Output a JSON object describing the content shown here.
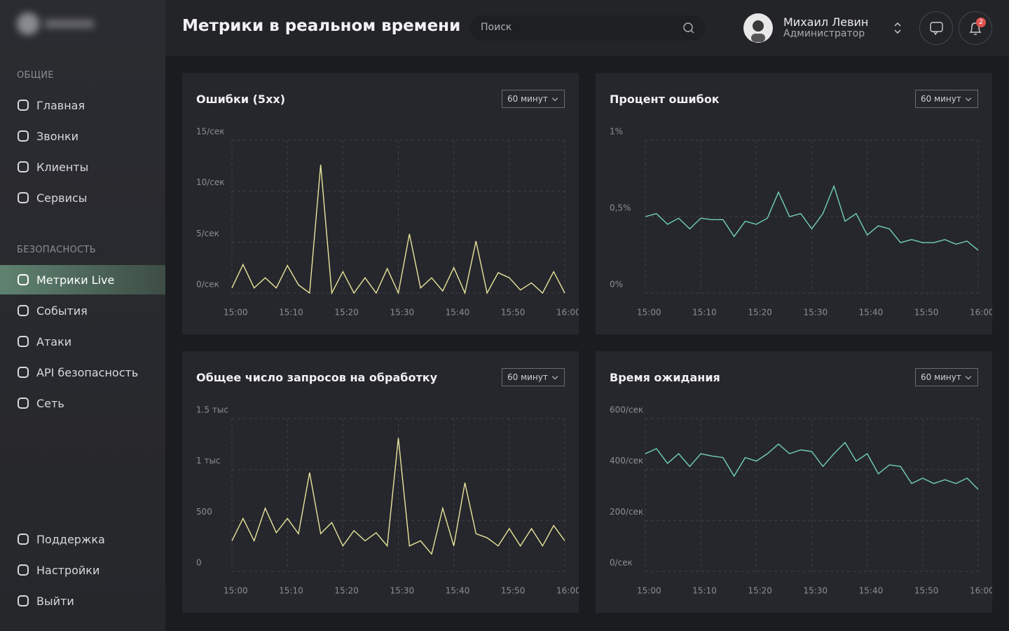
{
  "sidebar": {
    "groups": [
      {
        "title": "ОБЩИЕ",
        "items": [
          "Главная",
          "Звонки",
          "Клиенты",
          "Сервисы"
        ]
      },
      {
        "title": "БЕЗОПАСНОСТЬ",
        "items": [
          "Метрики Live",
          "События",
          "Атаки",
          "API безопасность",
          "Сеть"
        ]
      }
    ],
    "bottom": [
      "Поддержка",
      "Настройки",
      "Выйти"
    ]
  },
  "header": {
    "title": "Метрики в реальном времени",
    "search": "Поиск",
    "user": "Михаил Левин",
    "role": "Администратор",
    "notifications": 2
  },
  "chart_data": [
    {
      "type": "line",
      "title": "Ошибки (5xx)",
      "period": "60 минут",
      "color": "#e9e49c",
      "categories": [
        "15:00",
        null,
        null,
        null,
        null,
        "15:10",
        null,
        null,
        null,
        null,
        "15:20",
        null,
        null,
        null,
        null,
        "15:30",
        null,
        null,
        null,
        null,
        "15:40",
        null,
        null,
        null,
        null,
        "15:50",
        null,
        null,
        null,
        null,
        "16:00"
      ],
      "values": [
        0.5,
        2.8,
        0.5,
        1.5,
        0.5,
        2.7,
        0.8,
        0,
        12.6,
        0,
        2.1,
        0,
        1.5,
        0,
        2.4,
        0,
        5.8,
        0.5,
        1.5,
        0.2,
        2.5,
        0,
        5.1,
        0,
        2.0,
        1.5,
        0.3,
        1.0,
        0,
        2.1,
        0
      ],
      "ylim": [
        0,
        15
      ],
      "yticks": [
        {
          "value": 0,
          "label": "0/сек"
        },
        {
          "value": 5,
          "label": "5/сек"
        },
        {
          "value": 10,
          "label": "10/сек"
        },
        {
          "value": 15,
          "label": "15/сек"
        }
      ],
      "grid": true
    },
    {
      "type": "line",
      "title": "Процент ошибок",
      "period": "60 минут",
      "color": "#72d2b5",
      "categories": [
        "15:00",
        null,
        null,
        null,
        null,
        "15:10",
        null,
        null,
        null,
        null,
        "15:20",
        null,
        null,
        null,
        null,
        "15:30",
        null,
        null,
        null,
        null,
        "15:40",
        null,
        null,
        null,
        null,
        "15:50",
        null,
        null,
        null,
        null,
        "16:00"
      ],
      "values": [
        0.5,
        0.52,
        0.45,
        0.49,
        0.42,
        0.49,
        0.48,
        0.48,
        0.37,
        0.47,
        0.45,
        0.49,
        0.66,
        0.5,
        0.52,
        0.42,
        0.52,
        0.7,
        0.47,
        0.52,
        0.38,
        0.44,
        0.42,
        0.33,
        0.35,
        0.33,
        0.33,
        0.35,
        0.32,
        0.34,
        0.28
      ],
      "ylim": [
        0,
        1
      ],
      "yticks": [
        {
          "value": 0,
          "label": "0%"
        },
        {
          "value": 0.5,
          "label": "0,5%"
        },
        {
          "value": 1,
          "label": "1%"
        }
      ],
      "grid": true
    },
    {
      "type": "line",
      "title": "Общее число запросов на обработку",
      "period": "60 минут",
      "color": "#e9e49c",
      "categories": [
        "15:00",
        null,
        null,
        null,
        null,
        "15:10",
        null,
        null,
        null,
        null,
        "15:20",
        null,
        null,
        null,
        null,
        "15:30",
        null,
        null,
        null,
        null,
        "15:40",
        null,
        null,
        null,
        null,
        "15:50",
        null,
        null,
        null,
        null,
        "16:00"
      ],
      "values": [
        300,
        520,
        300,
        620,
        380,
        520,
        370,
        970,
        370,
        480,
        250,
        400,
        300,
        380,
        250,
        1310,
        250,
        300,
        170,
        620,
        250,
        870,
        370,
        330,
        250,
        420,
        250,
        420,
        250,
        450,
        300
      ],
      "ylim": [
        0,
        1500
      ],
      "yticks": [
        0,
        500,
        {
          "value": 1000,
          "label": "1 тыс"
        },
        {
          "value": 1500,
          "label": "1.5 тыс"
        }
      ],
      "grid": true
    },
    {
      "type": "line",
      "title": "Время ожидания",
      "period": "60 минут",
      "color": "#72d2b5",
      "categories": [
        "15:00",
        null,
        null,
        null,
        null,
        "15:10",
        null,
        null,
        null,
        null,
        "15:20",
        null,
        null,
        null,
        null,
        "15:30",
        null,
        null,
        null,
        null,
        "15:40",
        null,
        null,
        null,
        null,
        "15:50",
        null,
        null,
        null,
        null,
        "16:00"
      ],
      "values": [
        462,
        482,
        424,
        462,
        412,
        462,
        453,
        447,
        374,
        447,
        433,
        462,
        500,
        462,
        477,
        471,
        412,
        462,
        506,
        433,
        462,
        383,
        418,
        412,
        345,
        366,
        345,
        360,
        345,
        366,
        322
      ],
      "ylim": [
        0,
        600
      ],
      "yticks": [
        {
          "value": 0,
          "label": "0/сек"
        },
        {
          "value": 200,
          "label": "200/сек"
        },
        {
          "value": 400,
          "label": "400/сек"
        },
        {
          "value": 600,
          "label": "600/сек"
        }
      ],
      "grid": true
    }
  ]
}
